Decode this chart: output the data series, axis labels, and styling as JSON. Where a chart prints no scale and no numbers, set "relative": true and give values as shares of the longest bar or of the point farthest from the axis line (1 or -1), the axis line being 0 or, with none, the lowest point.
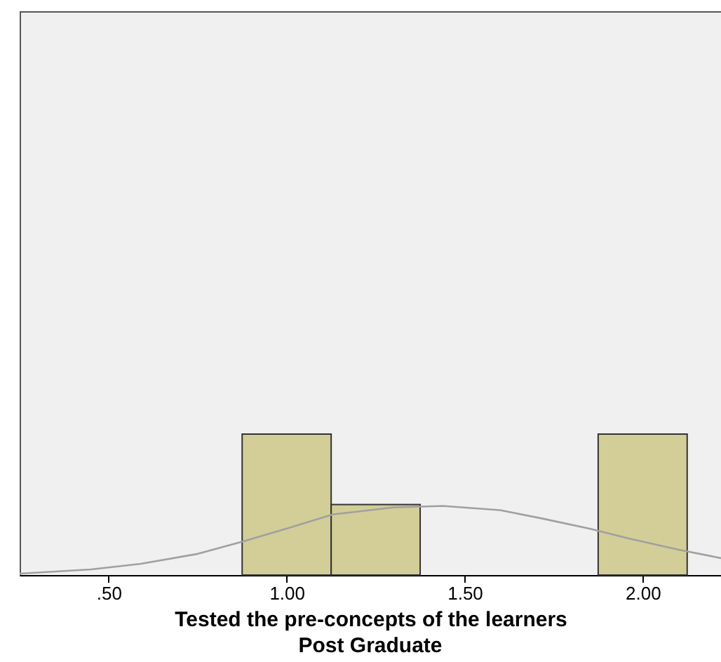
{
  "chart_data": {
    "type": "histogram",
    "relative": true,
    "title": "Post Graduate",
    "xlabel": "Tested the pre-concepts of the learners",
    "bins": [
      0.875,
      1.125,
      1.375,
      1.625,
      1.875,
      2.125
    ],
    "values": [
      1,
      0.5,
      0,
      0,
      1
    ],
    "color": "#d3ce97",
    "xlim": [
      0.25,
      2.22
    ],
    "xticks": [
      {
        "value": 0.5,
        "label": ".50"
      },
      {
        "value": 1.0,
        "label": "1.00"
      },
      {
        "value": 1.5,
        "label": "1.50"
      },
      {
        "value": 2.0,
        "label": "2.00"
      }
    ],
    "series": [
      {
        "type": "line",
        "color": "#a0a0a0",
        "x": [
          0.25,
          0.45,
          0.59,
          0.75,
          0.88,
          1.0,
          1.13,
          1.3,
          1.44,
          1.6,
          1.72,
          1.85,
          1.96,
          2.1,
          2.22
        ],
        "values": [
          0.01,
          0.04,
          0.08,
          0.15,
          0.24,
          0.33,
          0.43,
          0.48,
          0.49,
          0.46,
          0.4,
          0.33,
          0.26,
          0.18,
          0.12
        ]
      }
    ],
    "grid": false
  }
}
